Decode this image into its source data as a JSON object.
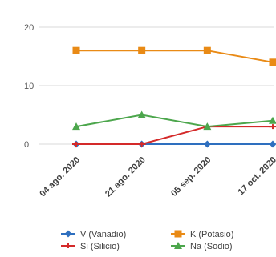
{
  "chart_data": {
    "type": "line",
    "categories": [
      "04 ago. 2020",
      "21 ago. 2020",
      "05 sep. 2020",
      "17 oct. 2020"
    ],
    "ylim": [
      0,
      20
    ],
    "yticks": [
      0,
      10,
      20
    ],
    "grid": true,
    "legend_position": "bottom",
    "series": [
      {
        "name": "V (Vanadio)",
        "color": "#2E6FBF",
        "marker": "diamond",
        "values": [
          0,
          0,
          0,
          0
        ]
      },
      {
        "name": "Si (Silicio)",
        "color": "#D42A2A",
        "marker": "plus",
        "values": [
          0,
          0,
          3,
          3
        ]
      },
      {
        "name": "K (Potasio)",
        "color": "#E98A15",
        "marker": "square",
        "values": [
          16,
          16,
          16,
          14
        ]
      },
      {
        "name": "Na (Sodio)",
        "color": "#4CA64C",
        "marker": "triangle",
        "values": [
          3,
          5,
          3,
          4
        ]
      }
    ]
  }
}
